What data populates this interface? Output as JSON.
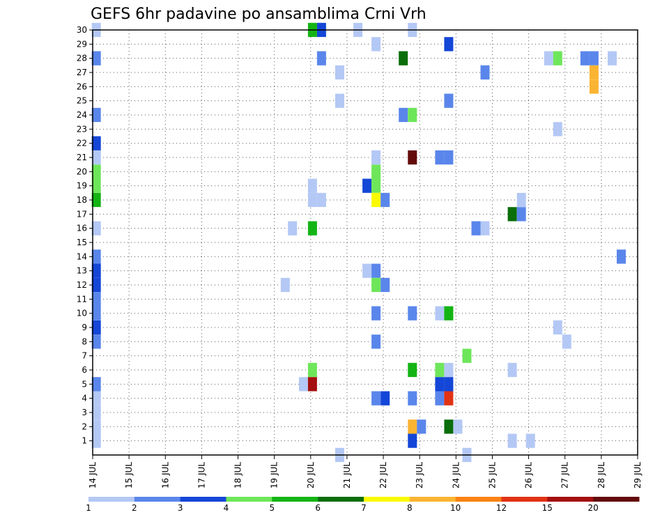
{
  "chart_data": {
    "type": "heatmap",
    "title": "GEFS 6hr padavine po ansamblima Crni Vrh",
    "x_tick_labels": [
      "14 JUL",
      "15 JUL",
      "16 JUL",
      "17 JUL",
      "18 JUL",
      "19 JUL",
      "20 JUL",
      "21 JUL",
      "22 JUL",
      "23 JUL",
      "24 JUL",
      "25 JUL",
      "26 JUL",
      "27 JUL",
      "28 JUL",
      "29 JUL"
    ],
    "y_tick_labels": [
      "1",
      "2",
      "3",
      "4",
      "5",
      "6",
      "7",
      "8",
      "9",
      "10",
      "11",
      "12",
      "13",
      "14",
      "15",
      "16",
      "17",
      "18",
      "19",
      "20",
      "21",
      "22",
      "23",
      "24",
      "25",
      "26",
      "27",
      "28",
      "29",
      "30"
    ],
    "xlim_days": [
      0,
      15
    ],
    "ylim": [
      0,
      30
    ],
    "grid": true,
    "colorbar": {
      "labels": [
        "1",
        "2",
        "3",
        "4",
        "5",
        "6",
        "7",
        "8",
        "10",
        "12",
        "15",
        "20"
      ],
      "colors": [
        "#b4c8f5",
        "#5a86eb",
        "#1446d7",
        "#6ee65a",
        "#14b414",
        "#0a6e0a",
        "#fafa00",
        "#fab432",
        "#fa8214",
        "#e13214",
        "#a50f0f",
        "#640a0a"
      ]
    },
    "cells": [
      {
        "member": 1,
        "day": 0.1,
        "v": 1.5
      },
      {
        "member": 2,
        "day": 0.1,
        "v": 1.5
      },
      {
        "member": 3,
        "day": 0.1,
        "v": 1.5
      },
      {
        "member": 4,
        "day": 0.1,
        "v": 1.5
      },
      {
        "member": 5,
        "day": 0.1,
        "v": 2.5
      },
      {
        "member": 8,
        "day": 0.1,
        "v": 2.5
      },
      {
        "member": 9,
        "day": 0.1,
        "v": 3.5
      },
      {
        "member": 10,
        "day": 0.1,
        "v": 2.5
      },
      {
        "member": 11,
        "day": 0.1,
        "v": 2.5
      },
      {
        "member": 12,
        "day": 0.1,
        "v": 3.5
      },
      {
        "member": 13,
        "day": 0.1,
        "v": 3.5
      },
      {
        "member": 14,
        "day": 0.1,
        "v": 2.5
      },
      {
        "member": 16,
        "day": 0.1,
        "v": 1.5
      },
      {
        "member": 18,
        "day": 0.1,
        "v": 5.5
      },
      {
        "member": 19,
        "day": 0.1,
        "v": 4.5
      },
      {
        "member": 20,
        "day": 0.1,
        "v": 4.5
      },
      {
        "member": 21,
        "day": 0.1,
        "v": 1.5
      },
      {
        "member": 22,
        "day": 0.1,
        "v": 3.5
      },
      {
        "member": 24,
        "day": 0.1,
        "v": 2.5
      },
      {
        "member": 28,
        "day": 0.1,
        "v": 2.5
      },
      {
        "member": 30,
        "day": 0.1,
        "v": 1.5
      },
      {
        "member": 16,
        "day": 5.5,
        "v": 1.5
      },
      {
        "member": 12,
        "day": 5.3,
        "v": 1.5
      },
      {
        "member": 5,
        "day": 5.8,
        "v": 1.5
      },
      {
        "member": 5,
        "day": 6.05,
        "v": 15.5
      },
      {
        "member": 6,
        "day": 6.05,
        "v": 4.5
      },
      {
        "member": 16,
        "day": 6.05,
        "v": 5.5
      },
      {
        "member": 18,
        "day": 6.05,
        "v": 1.5
      },
      {
        "member": 18,
        "day": 6.3,
        "v": 1.5
      },
      {
        "member": 19,
        "day": 6.05,
        "v": 1.5
      },
      {
        "member": 30,
        "day": 6.05,
        "v": 5.5
      },
      {
        "member": 30,
        "day": 6.3,
        "v": 3.5
      },
      {
        "member": 28,
        "day": 6.3,
        "v": 2.5
      },
      {
        "member": 0,
        "day": 6.8,
        "v": 1.5
      },
      {
        "member": 27,
        "day": 6.8,
        "v": 1.5
      },
      {
        "member": 25,
        "day": 6.8,
        "v": 1.5
      },
      {
        "member": 30,
        "day": 7.3,
        "v": 1.5
      },
      {
        "member": 19,
        "day": 7.55,
        "v": 3.5
      },
      {
        "member": 13,
        "day": 7.55,
        "v": 1.5
      },
      {
        "member": 20,
        "day": 7.8,
        "v": 4.5
      },
      {
        "member": 19,
        "day": 7.8,
        "v": 4.5
      },
      {
        "member": 18,
        "day": 7.8,
        "v": 7.5
      },
      {
        "member": 18,
        "day": 8.05,
        "v": 2.5
      },
      {
        "member": 13,
        "day": 7.8,
        "v": 2.5
      },
      {
        "member": 12,
        "day": 7.8,
        "v": 4.5
      },
      {
        "member": 12,
        "day": 8.05,
        "v": 2.5
      },
      {
        "member": 10,
        "day": 7.8,
        "v": 2.5
      },
      {
        "member": 8,
        "day": 7.8,
        "v": 2.5
      },
      {
        "member": 4,
        "day": 7.8,
        "v": 2.5
      },
      {
        "member": 4,
        "day": 8.05,
        "v": 3.5
      },
      {
        "member": 21,
        "day": 7.8,
        "v": 1.5
      },
      {
        "member": 29,
        "day": 7.8,
        "v": 1.5
      },
      {
        "member": 28,
        "day": 8.55,
        "v": 6.5
      },
      {
        "member": 24,
        "day": 8.55,
        "v": 2.5
      },
      {
        "member": 24,
        "day": 8.8,
        "v": 4.5
      },
      {
        "member": 21,
        "day": 8.8,
        "v": 20.5
      },
      {
        "member": 10,
        "day": 8.8,
        "v": 2.5
      },
      {
        "member": 6,
        "day": 8.8,
        "v": 5.5
      },
      {
        "member": 4,
        "day": 8.8,
        "v": 2.5
      },
      {
        "member": 2,
        "day": 8.8,
        "v": 8.5
      },
      {
        "member": 2,
        "day": 9.05,
        "v": 2.5
      },
      {
        "member": 1,
        "day": 8.8,
        "v": 3.5
      },
      {
        "member": 30,
        "day": 8.8,
        "v": 1.5
      },
      {
        "member": 21,
        "day": 9.55,
        "v": 2.5
      },
      {
        "member": 21,
        "day": 9.8,
        "v": 2.5
      },
      {
        "member": 10,
        "day": 9.55,
        "v": 1.5
      },
      {
        "member": 10,
        "day": 9.8,
        "v": 5.5
      },
      {
        "member": 6,
        "day": 9.55,
        "v": 4.5
      },
      {
        "member": 6,
        "day": 9.8,
        "v": 1.5
      },
      {
        "member": 5,
        "day": 9.55,
        "v": 3.5
      },
      {
        "member": 5,
        "day": 9.8,
        "v": 3.5
      },
      {
        "member": 4,
        "day": 9.55,
        "v": 2.5
      },
      {
        "member": 4,
        "day": 9.8,
        "v": 12.5
      },
      {
        "member": 2,
        "day": 9.8,
        "v": 6.5
      },
      {
        "member": 2,
        "day": 10.05,
        "v": 1.5
      },
      {
        "member": 29,
        "day": 9.8,
        "v": 3.5
      },
      {
        "member": 25,
        "day": 9.8,
        "v": 2.5
      },
      {
        "member": 7,
        "day": 10.3,
        "v": 4.5
      },
      {
        "member": 0,
        "day": 10.3,
        "v": 1.5
      },
      {
        "member": 27,
        "day": 10.8,
        "v": 2.5
      },
      {
        "member": 16,
        "day": 10.55,
        "v": 2.5
      },
      {
        "member": 16,
        "day": 10.8,
        "v": 1.5
      },
      {
        "member": 17,
        "day": 11.55,
        "v": 6.5
      },
      {
        "member": 17,
        "day": 11.8,
        "v": 2.5
      },
      {
        "member": 6,
        "day": 11.55,
        "v": 1.5
      },
      {
        "member": 1,
        "day": 11.55,
        "v": 1.5
      },
      {
        "member": 18,
        "day": 11.8,
        "v": 1.5
      },
      {
        "member": 1,
        "day": 12.05,
        "v": 1.5
      },
      {
        "member": 28,
        "day": 12.55,
        "v": 1.5
      },
      {
        "member": 28,
        "day": 12.8,
        "v": 4.5
      },
      {
        "member": 23,
        "day": 12.8,
        "v": 1.5
      },
      {
        "member": 9,
        "day": 12.8,
        "v": 1.5
      },
      {
        "member": 8,
        "day": 13.05,
        "v": 1.5
      },
      {
        "member": 28,
        "day": 13.55,
        "v": 2.5
      },
      {
        "member": 28,
        "day": 13.8,
        "v": 2.5
      },
      {
        "member": 27,
        "day": 13.8,
        "v": 9.5
      },
      {
        "member": 26,
        "day": 13.8,
        "v": 9.5
      },
      {
        "member": 28,
        "day": 14.3,
        "v": 1.5
      },
      {
        "member": 14,
        "day": 14.55,
        "v": 2.5
      }
    ]
  }
}
